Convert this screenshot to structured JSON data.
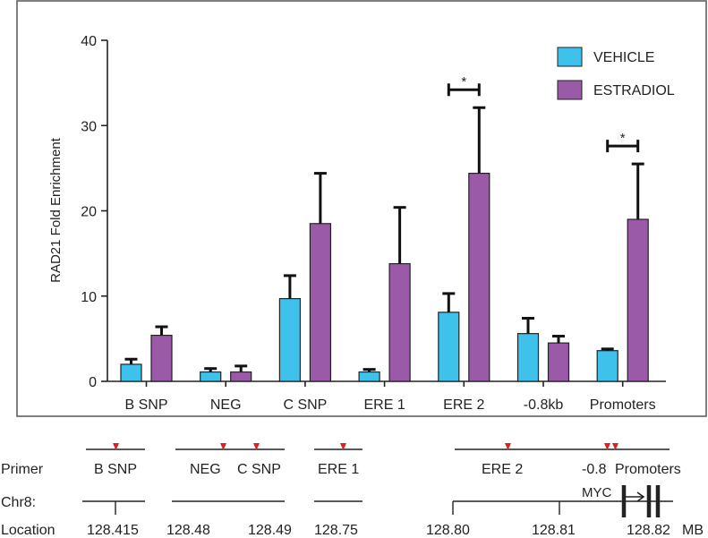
{
  "chart_data": {
    "type": "bar",
    "ylabel": "RAD21 Fold Enrichment",
    "xlabel": "",
    "ylim": [
      0,
      40
    ],
    "yticks": [
      0,
      10,
      20,
      30,
      40
    ],
    "categories": [
      "B SNP",
      "NEG",
      "C SNP",
      "ERE 1",
      "ERE 2",
      "-0.8kb",
      "Promoters"
    ],
    "series": [
      {
        "name": "VEHICLE",
        "color": "#3ec2ec",
        "values": [
          2.0,
          1.1,
          9.7,
          1.1,
          8.1,
          5.6,
          3.6
        ],
        "errors": [
          0.6,
          0.4,
          2.7,
          0.3,
          2.2,
          1.8,
          0.2
        ]
      },
      {
        "name": "ESTRADIOL",
        "color": "#9b5aa8",
        "values": [
          5.4,
          1.1,
          18.5,
          13.8,
          24.4,
          4.5,
          19.0
        ],
        "errors": [
          1.0,
          0.7,
          5.9,
          6.6,
          7.7,
          0.8,
          6.5
        ]
      }
    ],
    "significance": [
      {
        "category": "ERE 2",
        "label": "*"
      },
      {
        "category": "Promoters",
        "label": "*"
      }
    ],
    "legend_position": "top-right",
    "grid": false
  },
  "map": {
    "row_labels": {
      "primer": "Primer",
      "chr": "Chr8:",
      "location": "Location"
    },
    "primer_labels": [
      "B SNP",
      "NEG",
      "C SNP",
      "ERE 1",
      "ERE 2",
      "-0.8",
      "Promoters"
    ],
    "location_labels": [
      "128.415",
      "128.48",
      "128.49",
      "128.75",
      "128.80",
      "128.81",
      "128.82"
    ],
    "units": "MB",
    "gene_label": "MYC",
    "marker_color": "#e02020"
  }
}
